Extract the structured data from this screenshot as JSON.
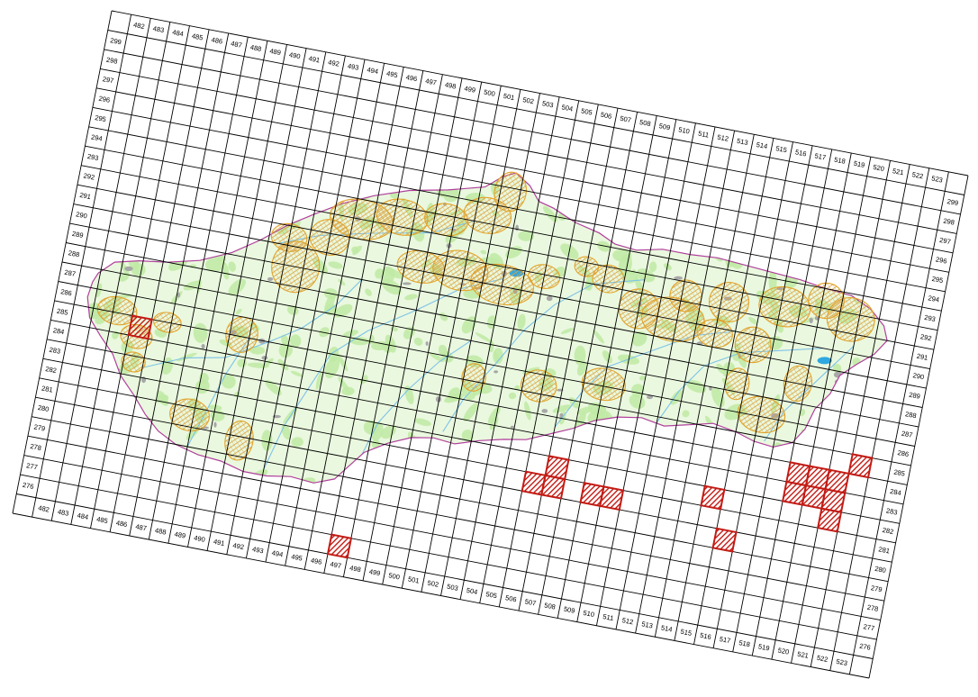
{
  "grid": {
    "columns": [
      "482",
      "483",
      "484",
      "485",
      "486",
      "487",
      "488",
      "489",
      "490",
      "491",
      "492",
      "493",
      "494",
      "495",
      "496",
      "497",
      "498",
      "499",
      "500",
      "501",
      "502",
      "503",
      "504",
      "505",
      "506",
      "507",
      "508",
      "509",
      "510",
      "511",
      "512",
      "513",
      "514",
      "515",
      "516",
      "517",
      "518",
      "519",
      "520",
      "521",
      "522",
      "523"
    ],
    "rows": [
      "299",
      "298",
      "297",
      "296",
      "295",
      "294",
      "293",
      "292",
      "291",
      "290",
      "289",
      "288",
      "287",
      "286",
      "285",
      "284",
      "283",
      "282",
      "281",
      "280",
      "279",
      "278",
      "277",
      "276"
    ]
  },
  "highlighted_cells": [
    {
      "col": "485",
      "row": "285"
    },
    {
      "col": "497",
      "row": "276"
    },
    {
      "col": "506",
      "row": "281"
    },
    {
      "col": "507",
      "row": "281"
    },
    {
      "col": "507",
      "row": "282"
    },
    {
      "col": "509",
      "row": "281"
    },
    {
      "col": "510",
      "row": "281"
    },
    {
      "col": "515",
      "row": "282"
    },
    {
      "col": "516",
      "row": "280"
    },
    {
      "col": "519",
      "row": "284"
    },
    {
      "col": "520",
      "row": "284"
    },
    {
      "col": "521",
      "row": "284"
    },
    {
      "col": "519",
      "row": "283"
    },
    {
      "col": "520",
      "row": "283"
    },
    {
      "col": "521",
      "row": "283"
    },
    {
      "col": "521",
      "row": "282"
    },
    {
      "col": "522",
      "row": "285"
    }
  ],
  "colors": {
    "grid": "#000000",
    "country_fill": "#eaf8df",
    "forest_patch": "#bfeaa4",
    "border": "#b0409c",
    "protected_area": "#e2a32a",
    "protected_hatch": "#d9b85c",
    "highlight_stroke": "#c21b14",
    "river": "#7ec3e8",
    "lake": "#2fa7e0",
    "settlement": "#a8a8a8"
  },
  "legend": null
}
